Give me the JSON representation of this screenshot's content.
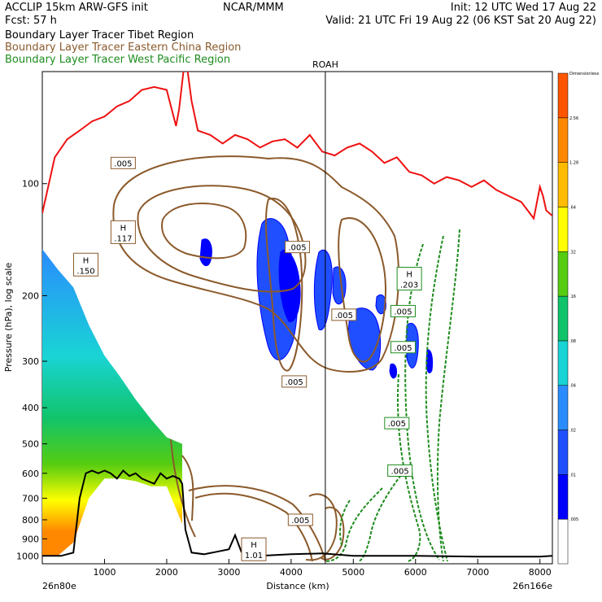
{
  "header": {
    "left1": "ACCLIP 15km ARW-GFS init",
    "left2": "Fcst:   57 h",
    "center": "NCAR/MMM",
    "right1": "Init: 12 UTC Wed 17 Aug 22",
    "right2": "Valid: 21 UTC Fri 19 Aug 22 (06 KST Sat 20 Aug 22)",
    "legend": [
      {
        "label": "Boundary Layer Tracer  Tibet Region",
        "color": "#000000"
      },
      {
        "label": "Boundary Layer Tracer  Eastern China Region",
        "color": "#8b5a2b"
      },
      {
        "label": "Boundary Layer Tracer  West Pacific Region",
        "color": "#1e8c1e"
      }
    ]
  },
  "colors": {
    "tropopause": "#ee1111",
    "terrain": "#000000",
    "china": "#8b5a2b",
    "pacific": "#1e8c1e",
    "marker": "#000000",
    "fill_levels": [
      "#ffffff",
      "#0000ff",
      "#1f4fff",
      "#2a8cff",
      "#19d4d4",
      "#11c46b",
      "#55cc11",
      "#ffff00",
      "#ffbb00",
      "#ff8800",
      "#ff5500"
    ]
  },
  "chart_data": {
    "type": "cross-section",
    "xlabel": "Distance (km)",
    "ylabel": "Pressure (hPa), log scale",
    "x_ticks": [
      1000,
      2000,
      3000,
      4000,
      5000,
      6000,
      7000,
      8000
    ],
    "y_ticks": [
      100,
      200,
      300,
      400,
      500,
      600,
      700,
      800,
      900,
      1000
    ],
    "xlim": [
      0,
      8200
    ],
    "ylim": [
      1050,
      50
    ],
    "left_endpoint": "26n80e",
    "right_endpoint": "26n166e",
    "marker": {
      "label": "ROAH",
      "x": 4550
    },
    "colorbar": {
      "title": "Dimensionless",
      "labels": [
        ".005",
        ".01",
        ".02",
        ".04",
        ".08",
        ".16",
        ".32",
        ".64",
        "1.28",
        "2.56"
      ]
    },
    "tropopause": {
      "x": [
        0,
        200,
        400,
        600,
        800,
        1000,
        1100,
        1200,
        1400,
        1600,
        1800,
        2000,
        2150,
        2200,
        2300,
        2400,
        2500,
        2700,
        2900,
        3100,
        3300,
        3500,
        3700,
        3900,
        4100,
        4300,
        4500,
        4700,
        4900,
        5100,
        5300,
        5500,
        5700,
        5900,
        6100,
        6300,
        6500,
        6700,
        6900,
        7100,
        7300,
        7500,
        7700,
        7900,
        8000,
        8050,
        8100,
        8200
      ],
      "p": [
        120,
        85,
        76,
        72,
        68,
        66,
        64,
        62,
        60,
        56,
        55,
        56,
        70,
        63,
        45,
        60,
        72,
        74,
        78,
        74,
        76,
        80,
        77,
        76,
        80,
        74,
        82,
        84,
        80,
        78,
        82,
        88,
        85,
        93,
        95,
        100,
        96,
        98,
        102,
        98,
        104,
        108,
        112,
        124,
        102,
        108,
        118,
        122
      ]
    },
    "terrain": {
      "x": [
        0,
        300,
        500,
        600,
        700,
        800,
        900,
        1000,
        1100,
        1200,
        1300,
        1400,
        1500,
        1600,
        1700,
        1800,
        1900,
        2000,
        2100,
        2200,
        2250,
        2300,
        2400,
        2600,
        2800,
        3000,
        3100,
        3200,
        3300,
        3500,
        4000,
        4500,
        5000,
        6000,
        7000,
        8000,
        8200
      ],
      "p": [
        1000,
        1000,
        980,
        700,
        600,
        590,
        600,
        590,
        600,
        620,
        590,
        610,
        600,
        620,
        630,
        640,
        600,
        620,
        610,
        620,
        640,
        850,
        980,
        990,
        975,
        960,
        880,
        975,
        990,
        1000,
        990,
        985,
        1000,
        1000,
        1005,
        1005,
        1000
      ]
    },
    "highs": [
      {
        "label": "H",
        "value": ".150",
        "x": 700,
        "p": 165,
        "series": "china"
      },
      {
        "label": "H",
        "value": ".117",
        "x": 1300,
        "p": 135,
        "series": "china"
      },
      {
        "label": "H",
        "value": "1.01",
        "x": 3400,
        "p": 960,
        "series": "china"
      },
      {
        "label": "H",
        "value": ".203",
        "x": 5900,
        "p": 180,
        "series": "pacific"
      }
    ],
    "labels": [
      {
        "text": ".005",
        "x": 1300,
        "p": 88,
        "series": "china"
      },
      {
        "text": ".005",
        "x": 4100,
        "p": 148,
        "series": "china"
      },
      {
        "text": ".005",
        "x": 4050,
        "p": 340,
        "series": "china"
      },
      {
        "text": ".005",
        "x": 4850,
        "p": 225,
        "series": "china"
      },
      {
        "text": ".005",
        "x": 4150,
        "p": 800,
        "series": "china"
      },
      {
        "text": ".005",
        "x": 5800,
        "p": 220,
        "series": "pacific"
      },
      {
        "text": ".005",
        "x": 5700,
        "p": 440,
        "series": "pacific"
      },
      {
        "text": ".005",
        "x": 5750,
        "p": 590,
        "series": "pacific"
      },
      {
        "text": ".005",
        "x": 5800,
        "p": 275,
        "series": "pacific"
      }
    ],
    "plume_tibet": {
      "x": [
        0,
        250,
        500,
        750,
        1000,
        1250,
        1500,
        1750,
        2000,
        2250
      ],
      "p_top": [
        150,
        170,
        190,
        240,
        290,
        330,
        380,
        430,
        480,
        500
      ],
      "p_bottom": [
        1000,
        1000,
        920,
        700,
        620,
        620,
        630,
        650,
        650,
        820
      ]
    }
  }
}
